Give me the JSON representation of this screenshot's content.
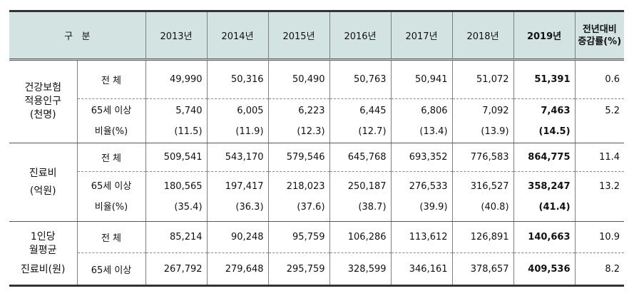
{
  "header": {
    "category": "구   분",
    "years": [
      "2013년",
      "2014년",
      "2015년",
      "2016년",
      "2017년",
      "2018년"
    ],
    "year_2019": "2019년",
    "change_line1": "전년대비",
    "change_line2": "증감률(%)"
  },
  "groups": {
    "insured": {
      "label_lines": [
        "건강보험",
        "적용인구",
        "(천명)"
      ],
      "total_label": "전 체",
      "total": [
        "49,990",
        "50,316",
        "50,490",
        "50,763",
        "50,941",
        "51,072",
        "51,391",
        "0.6"
      ],
      "senior_label": "65세 이상",
      "ratio_label": "비율(%)",
      "senior": [
        "5,740",
        "6,005",
        "6,223",
        "6,445",
        "6,806",
        "7,092",
        "7,463",
        "5.2"
      ],
      "ratio": [
        "(11.5)",
        "(11.9)",
        "(12.3)",
        "(12.7)",
        "(13.4)",
        "(13.9)",
        "(14.5)"
      ]
    },
    "cost": {
      "label_lines": [
        "진료비",
        "(억원)"
      ],
      "total_label": "전 체",
      "total": [
        "509,541",
        "543,170",
        "579,546",
        "645,768",
        "693,352",
        "776,583",
        "864,775",
        "11.4"
      ],
      "senior_label": "65세 이상",
      "ratio_label": "비율(%)",
      "senior": [
        "180,565",
        "197,417",
        "218,023",
        "250,187",
        "276,533",
        "316,527",
        "358,247",
        "13.2"
      ],
      "ratio": [
        "(35.4)",
        "(36.3)",
        "(37.6)",
        "(38.7)",
        "(39.9)",
        "(40.8)",
        "(41.4)"
      ]
    },
    "monthly": {
      "label_lines": [
        "1인당",
        "월평균",
        "진료비(원)"
      ],
      "total_label": "전 체",
      "total": [
        "85,214",
        "90,248",
        "95,759",
        "106,286",
        "113,612",
        "126,891",
        "140,663",
        "10.9"
      ],
      "senior_label": "65세 이상",
      "senior": [
        "267,792",
        "279,648",
        "295,759",
        "328,599",
        "346,161",
        "378,657",
        "409,536",
        "8.2"
      ]
    }
  }
}
